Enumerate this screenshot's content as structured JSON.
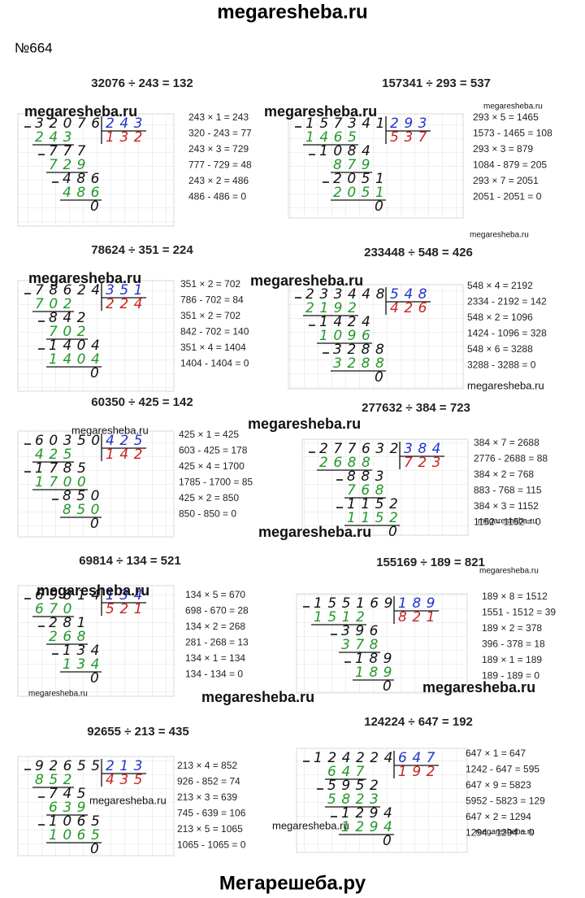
{
  "header": {
    "site": "megaresheba.ru",
    "task": "№664"
  },
  "problems": [
    {
      "title": "32076 ÷ 243 = 132",
      "dividend": "32076",
      "divisor": "243",
      "quotient": "132",
      "steps": [
        "243",
        "777",
        "729",
        "486",
        "486",
        "0"
      ],
      "notes": [
        "243 × 1 = 243",
        "320 - 243 = 77",
        "243 × 3 = 729",
        "777 - 729 = 48",
        "243 × 2 = 486",
        "486 - 486 = 0"
      ]
    },
    {
      "title": "157341 ÷ 293 = 537",
      "dividend": "157341",
      "divisor": "293",
      "quotient": "537",
      "steps": [
        "1465",
        "1084",
        "879",
        "2051",
        "2051",
        "0"
      ],
      "notes": [
        "293 × 5 = 1465",
        "1573 - 1465 = 108",
        "293 × 3 = 879",
        "1084 - 879 = 205",
        "293 × 7 = 2051",
        "2051 - 2051 = 0"
      ]
    },
    {
      "title": "78624 ÷ 351 = 224",
      "dividend": "78624",
      "divisor": "351",
      "quotient": "224",
      "steps": [
        "702",
        "842",
        "702",
        "1404",
        "1404",
        "0"
      ],
      "notes": [
        "351 × 2 = 702",
        "786 - 702 = 84",
        "351 × 2 = 702",
        "842 - 702 = 140",
        "351 × 4 = 1404",
        "1404 - 1404 = 0"
      ]
    },
    {
      "title": "233448 ÷ 548 = 426",
      "dividend": "233448",
      "divisor": "548",
      "quotient": "426",
      "steps": [
        "2192",
        "1424",
        "1096",
        "3288",
        "3288",
        "0"
      ],
      "notes": [
        "548 × 4 = 2192",
        "2334 - 2192 = 142",
        "548 × 2 = 1096",
        "1424 - 1096 = 328",
        "548 × 6 = 3288",
        "3288 - 3288 = 0"
      ]
    },
    {
      "title": "60350 ÷ 425 = 142",
      "dividend": "60350",
      "divisor": "425",
      "quotient": "142",
      "steps": [
        "425",
        "1785",
        "1700",
        "850",
        "850",
        "0"
      ],
      "notes": [
        "425 × 1 = 425",
        "603 - 425 = 178",
        "425 × 4 = 1700",
        "1785 - 1700 = 85",
        "425 × 2 = 850",
        "850 - 850 = 0"
      ]
    },
    {
      "title": "277632 ÷ 384 = 723",
      "dividend": "277632",
      "divisor": "384",
      "quotient": "723",
      "steps": [
        "2688",
        "883",
        "768",
        "1152",
        "1152",
        "0"
      ],
      "notes": [
        "384 × 7 = 2688",
        "2776 - 2688 = 88",
        "384 × 2 = 768",
        "883 - 768 = 115",
        "384 × 3 = 1152",
        "1152 - 1152 = 0"
      ]
    },
    {
      "title": "69814 ÷ 134 = 521",
      "dividend": "69814",
      "divisor": "134",
      "quotient": "521",
      "steps": [
        "670",
        "281",
        "268",
        "134",
        "134",
        "0"
      ],
      "notes": [
        "134 × 5 = 670",
        "698 - 670 = 28",
        "134 × 2 = 268",
        "281 - 268 = 13",
        "134 × 1 = 134",
        "134 - 134 = 0"
      ]
    },
    {
      "title": "155169 ÷ 189 = 821",
      "dividend": "155169",
      "divisor": "189",
      "quotient": "821",
      "steps": [
        "1512",
        "396",
        "378",
        "189",
        "189",
        "0"
      ],
      "notes": [
        "189 × 8 = 1512",
        "1551 - 1512 = 39",
        "189 × 2 = 378",
        "396 - 378 = 18",
        "189 × 1 = 189",
        "189 - 189 = 0"
      ]
    },
    {
      "title": "92655 ÷ 213 = 435",
      "dividend": "92655",
      "divisor": "213",
      "quotient": "435",
      "steps": [
        "852",
        "745",
        "639",
        "1065",
        "1065",
        "0"
      ],
      "notes": [
        "213 × 4 = 852",
        "926 - 852 = 74",
        "213 × 3 = 639",
        "745 - 639 = 106",
        "213 × 5 = 1065",
        "1065 - 1065 = 0"
      ]
    },
    {
      "title": "124224 ÷ 647 = 192",
      "dividend": "124224",
      "divisor": "647",
      "quotient": "192",
      "steps": [
        "647",
        "5952",
        "5823",
        "1294",
        "1294",
        "0"
      ],
      "notes": [
        "647 × 1 = 647",
        "1242 - 647 = 595",
        "647 × 9 = 5823",
        "5952 - 5823 = 129",
        "647 × 2 = 1294",
        "1294 - 1294 = 0"
      ]
    }
  ],
  "watermarks": [
    "megaresheba.ru",
    "megaresheba.ru",
    "megaresheba.ru",
    "megaresheba.ru",
    "megaresheba.ru",
    "megaresheba.ru",
    "megaresheba.ru",
    "megaresheba.ru",
    "megaresheba.ru",
    "megaresheba.ru",
    "megaresheba.ru",
    "megaresheba.ru",
    "megaresheba.ru",
    "megaresheba.ru",
    "megaresheba.ru",
    "megaresheba.ru",
    "megaresheba.ru",
    "megaresheba.ru",
    "megaresheba.ru"
  ],
  "footer": "Мегарешеба.ру"
}
